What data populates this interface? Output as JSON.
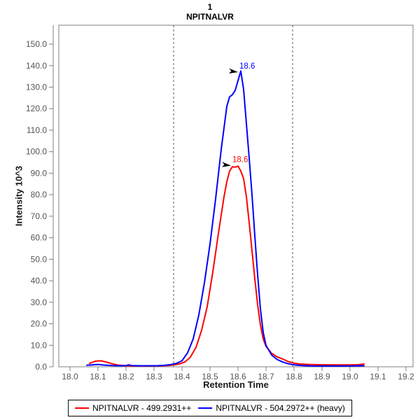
{
  "title": {
    "line1": "1",
    "line2": "NPITNALVR"
  },
  "chart_data": {
    "type": "line",
    "title": "1 NPITNALVR",
    "xlabel": "Retention Time",
    "ylabel": "Intensity 10^3",
    "xlim": [
      17.96,
      19.225
    ],
    "ylim": [
      0,
      158.8
    ],
    "grid": false,
    "legend_position": "bottom-center",
    "xtick_labels": [
      "18.0",
      "18.1",
      "18.2",
      "18.3",
      "18.4",
      "18.5",
      "18.6",
      "18.7",
      "18.8",
      "18.9",
      "19.0",
      "19.1",
      "19.2"
    ],
    "ytick_labels": [
      "0.0",
      "10.0",
      "20.0",
      "30.0",
      "40.0",
      "50.0",
      "60.0",
      "70.0",
      "80.0",
      "90.0",
      "100.0",
      "110.0",
      "120.0",
      "130.0",
      "140.0",
      "150.0"
    ],
    "integration_boundaries": [
      18.37,
      18.795
    ],
    "boundary_color": "#595959",
    "axis_color": "#808080",
    "tick_label_color": "#555555",
    "series": [
      {
        "name": "NPITNALVR - 499.2931++",
        "color": "#ff0000",
        "annotation": {
          "label": "18.6",
          "tip": [
            18.575,
            93.5
          ]
        },
        "points": [
          [
            18.07,
            1.6
          ],
          [
            18.09,
            2.6
          ],
          [
            18.11,
            2.8
          ],
          [
            18.13,
            2.2
          ],
          [
            18.15,
            1.4
          ],
          [
            18.17,
            0.8
          ],
          [
            18.2,
            0.5
          ],
          [
            18.24,
            0.4
          ],
          [
            18.28,
            0.4
          ],
          [
            18.32,
            0.45
          ],
          [
            18.35,
            0.6
          ],
          [
            18.37,
            0.9
          ],
          [
            18.39,
            1.3
          ],
          [
            18.41,
            2.2
          ],
          [
            18.43,
            4.5
          ],
          [
            18.45,
            9
          ],
          [
            18.47,
            17
          ],
          [
            18.49,
            28
          ],
          [
            18.51,
            44
          ],
          [
            18.53,
            62
          ],
          [
            18.55,
            79
          ],
          [
            18.56,
            86
          ],
          [
            18.57,
            91
          ],
          [
            18.58,
            93
          ],
          [
            18.59,
            92.8
          ],
          [
            18.6,
            93.3
          ],
          [
            18.61,
            91
          ],
          [
            18.62,
            87.5
          ],
          [
            18.63,
            79
          ],
          [
            18.64,
            67
          ],
          [
            18.65,
            54
          ],
          [
            18.66,
            41
          ],
          [
            18.67,
            29
          ],
          [
            18.68,
            19.5
          ],
          [
            18.69,
            13
          ],
          [
            18.7,
            9.5
          ],
          [
            18.72,
            6.3
          ],
          [
            18.74,
            4.6
          ],
          [
            18.76,
            3.6
          ],
          [
            18.78,
            2.4
          ],
          [
            18.8,
            1.7
          ],
          [
            18.82,
            1.3
          ],
          [
            18.85,
            1.1
          ],
          [
            18.9,
            0.95
          ],
          [
            18.95,
            0.9
          ],
          [
            19.0,
            0.9
          ],
          [
            19.03,
            0.95
          ],
          [
            19.05,
            1.3
          ]
        ]
      },
      {
        "name": "NPITNALVR - 504.2972++ (heavy)",
        "color": "#0000ff",
        "annotation": {
          "label": "18.6",
          "tip": [
            18.6,
            137.0
          ]
        },
        "points": [
          [
            18.06,
            0.7
          ],
          [
            18.08,
            0.9
          ],
          [
            18.1,
            1.1
          ],
          [
            18.12,
            0.8
          ],
          [
            18.15,
            0.6
          ],
          [
            18.18,
            0.5
          ],
          [
            18.2,
            0.6
          ],
          [
            18.21,
            0.9
          ],
          [
            18.22,
            0.6
          ],
          [
            18.25,
            0.5
          ],
          [
            18.28,
            0.5
          ],
          [
            18.31,
            0.5
          ],
          [
            18.34,
            0.7
          ],
          [
            18.36,
            1.0
          ],
          [
            18.38,
            1.6
          ],
          [
            18.4,
            2.8
          ],
          [
            18.42,
            6.5
          ],
          [
            18.44,
            13
          ],
          [
            18.46,
            24
          ],
          [
            18.48,
            39
          ],
          [
            18.5,
            57
          ],
          [
            18.52,
            78
          ],
          [
            18.54,
            101
          ],
          [
            18.56,
            121
          ],
          [
            18.57,
            125.5
          ],
          [
            18.58,
            126.5
          ],
          [
            18.59,
            128.5
          ],
          [
            18.6,
            133
          ],
          [
            18.61,
            137.5
          ],
          [
            18.62,
            129
          ],
          [
            18.63,
            113
          ],
          [
            18.64,
            97
          ],
          [
            18.65,
            80
          ],
          [
            18.66,
            61
          ],
          [
            18.67,
            43
          ],
          [
            18.68,
            27
          ],
          [
            18.69,
            16
          ],
          [
            18.7,
            10
          ],
          [
            18.72,
            5.5
          ],
          [
            18.74,
            3.4
          ],
          [
            18.76,
            2.2
          ],
          [
            18.78,
            1.4
          ],
          [
            18.8,
            0.9
          ],
          [
            18.83,
            0.6
          ],
          [
            18.86,
            0.4
          ],
          [
            18.9,
            0.35
          ],
          [
            18.95,
            0.35
          ],
          [
            19.0,
            0.4
          ],
          [
            19.05,
            0.5
          ]
        ]
      }
    ]
  },
  "legend": {
    "items": [
      {
        "label": "NPITNALVR - 499.2931++",
        "color": "#ff0000"
      },
      {
        "label": "NPITNALVR - 504.2972++ (heavy)",
        "color": "#0000ff"
      }
    ]
  }
}
